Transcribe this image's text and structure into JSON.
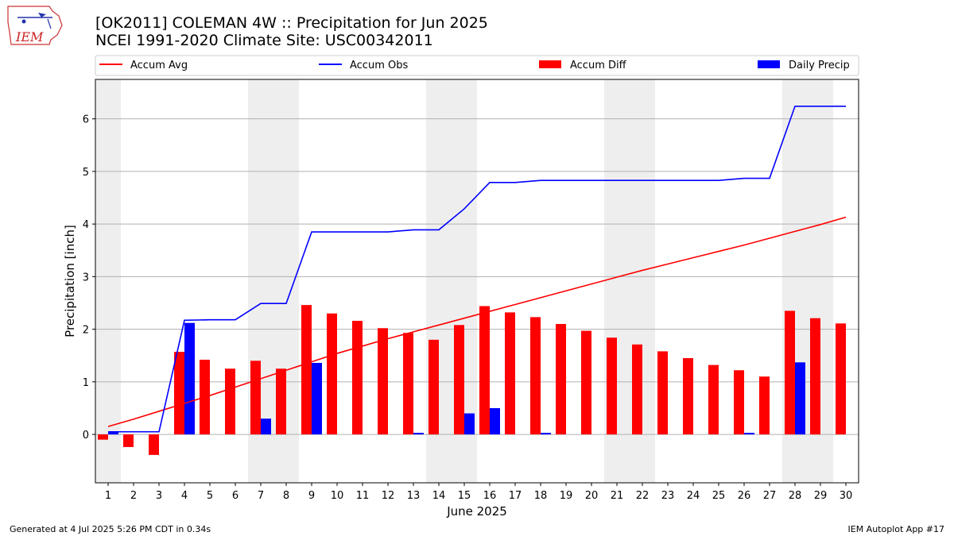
{
  "header": {
    "title_line1": "[OK2011] COLEMAN 4W :: Precipitation for Jun 2025",
    "title_line2": "NCEI 1991-2020 Climate Site: USC00342011"
  },
  "footer": {
    "generated": "Generated at 4 Jul 2025 5:26 PM CDT in 0.34s",
    "app": "IEM Autoplot App #17"
  },
  "logo": {
    "text": "IEM"
  },
  "colors": {
    "avg": "#ff0000",
    "obs": "#0000ff",
    "diff": "#ff0000",
    "daily": "#0000ff",
    "weekend": "#eeeeee",
    "grid": "#b0b0b0"
  },
  "chart_data": {
    "type": "bar",
    "xlabel": "June 2025",
    "ylabel": "Precipitation [inch]",
    "ylim": [
      -0.92,
      6.75
    ],
    "yticks": [
      0,
      1,
      2,
      3,
      4,
      5,
      6
    ],
    "days": [
      1,
      2,
      3,
      4,
      5,
      6,
      7,
      8,
      9,
      10,
      11,
      12,
      13,
      14,
      15,
      16,
      17,
      18,
      19,
      20,
      21,
      22,
      23,
      24,
      25,
      26,
      27,
      28,
      29,
      30
    ],
    "weekend_days": [
      1,
      7,
      8,
      14,
      15,
      21,
      22,
      28,
      29
    ],
    "legend": [
      "Accum Avg",
      "Accum Obs",
      "Accum Diff",
      "Daily Precip"
    ],
    "legend_position": "top",
    "grid": "horizontal",
    "series": [
      {
        "name": "Accum Avg",
        "type": "line",
        "values": [
          0.15,
          0.29,
          0.44,
          0.59,
          0.74,
          0.9,
          1.06,
          1.22,
          1.38,
          1.54,
          1.68,
          1.82,
          1.95,
          2.08,
          2.21,
          2.34,
          2.47,
          2.6,
          2.73,
          2.86,
          2.99,
          3.12,
          3.24,
          3.36,
          3.48,
          3.6,
          3.73,
          3.86,
          3.99,
          4.13
        ]
      },
      {
        "name": "Accum Obs",
        "type": "line",
        "values": [
          0.05,
          0.05,
          0.05,
          2.17,
          2.18,
          2.18,
          2.49,
          2.49,
          3.85,
          3.85,
          3.85,
          3.85,
          3.89,
          3.89,
          4.29,
          4.79,
          4.79,
          4.83,
          4.83,
          4.83,
          4.83,
          4.83,
          4.83,
          4.83,
          4.83,
          4.87,
          4.87,
          6.24,
          6.24,
          6.24
        ]
      },
      {
        "name": "Accum Diff",
        "type": "bar",
        "values": [
          -0.1,
          -0.24,
          -0.39,
          1.57,
          1.42,
          1.25,
          1.4,
          1.25,
          2.46,
          2.3,
          2.16,
          2.02,
          1.93,
          1.8,
          2.08,
          2.44,
          2.32,
          2.23,
          2.1,
          1.97,
          1.84,
          1.71,
          1.58,
          1.45,
          1.32,
          1.22,
          1.1,
          2.35,
          2.21,
          2.11
        ]
      },
      {
        "name": "Daily Precip",
        "type": "bar",
        "values": [
          0.05,
          0.0,
          0.0,
          2.12,
          0.0,
          0.0,
          0.3,
          0.0,
          1.36,
          0.0,
          0.0,
          0.0,
          0.03,
          0.0,
          0.4,
          0.5,
          0.0,
          0.03,
          0.0,
          0.0,
          0.0,
          0.0,
          0.0,
          0.0,
          0.0,
          0.03,
          0.0,
          1.37,
          0.0,
          0.0
        ]
      }
    ]
  }
}
